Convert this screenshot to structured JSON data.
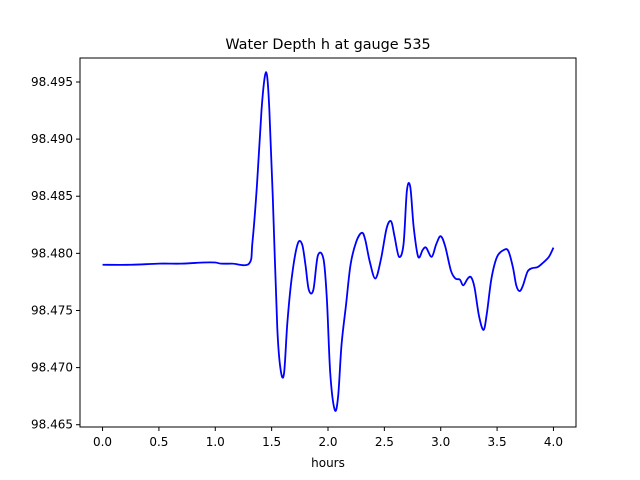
{
  "chart_data": {
    "type": "line",
    "title": "Water Depth h at gauge 535",
    "xlabel": "hours",
    "ylabel": "",
    "xlim": [
      -0.2,
      4.2
    ],
    "ylim": [
      98.4648,
      98.4971
    ],
    "grid": false,
    "legend": "none",
    "x_ticks": [
      0.0,
      0.5,
      1.0,
      1.5,
      2.0,
      2.5,
      3.0,
      3.5,
      4.0
    ],
    "x_tick_labels": [
      "0.0",
      "0.5",
      "1.0",
      "1.5",
      "2.0",
      "2.5",
      "3.0",
      "3.5",
      "4.0"
    ],
    "y_ticks": [
      98.465,
      98.47,
      98.475,
      98.48,
      98.485,
      98.49,
      98.495
    ],
    "y_tick_labels": [
      "98.465",
      "98.470",
      "98.475",
      "98.480",
      "98.485",
      "98.490",
      "98.495"
    ],
    "series": [
      {
        "color": "#0000ff",
        "x": [
          0.0,
          0.25,
          0.5,
          0.7,
          0.9,
          1.0,
          1.05,
          1.15,
          1.3,
          1.33,
          1.37,
          1.41,
          1.44,
          1.46,
          1.48,
          1.51,
          1.55,
          1.58,
          1.61,
          1.64,
          1.68,
          1.73,
          1.77,
          1.8,
          1.83,
          1.87,
          1.91,
          1.96,
          1.99,
          2.02,
          2.06,
          2.09,
          2.12,
          2.16,
          2.2,
          2.25,
          2.3,
          2.33,
          2.37,
          2.42,
          2.47,
          2.52,
          2.56,
          2.59,
          2.63,
          2.67,
          2.7,
          2.73,
          2.76,
          2.8,
          2.84,
          2.87,
          2.92,
          2.96,
          3.0,
          3.04,
          3.09,
          3.13,
          3.17,
          3.2,
          3.24,
          3.27,
          3.3,
          3.34,
          3.38,
          3.41,
          3.45,
          3.5,
          3.56,
          3.6,
          3.64,
          3.67,
          3.7,
          3.73,
          3.77,
          3.81,
          3.86,
          3.91,
          3.96,
          4.0
        ],
        "y": [
          98.479,
          98.479,
          98.4791,
          98.4791,
          98.4792,
          98.4792,
          98.4791,
          98.4791,
          98.4791,
          98.481,
          98.486,
          98.4925,
          98.4955,
          98.4955,
          98.4925,
          98.485,
          98.4735,
          98.4698,
          98.4695,
          98.474,
          98.478,
          98.4808,
          98.4808,
          98.479,
          98.4768,
          98.4768,
          98.4798,
          98.4795,
          98.476,
          98.4695,
          98.4663,
          98.4675,
          98.472,
          98.4755,
          98.479,
          98.481,
          98.4818,
          98.4812,
          98.4793,
          98.4778,
          98.4795,
          98.4822,
          98.4828,
          98.4815,
          98.4797,
          98.4808,
          98.4855,
          98.4858,
          98.4823,
          98.4797,
          98.4803,
          98.4805,
          98.4797,
          98.4808,
          98.4815,
          98.4806,
          98.4785,
          98.4778,
          98.4777,
          98.4772,
          98.4778,
          98.4779,
          98.477,
          98.4745,
          98.4733,
          98.4748,
          98.4778,
          98.4797,
          98.4803,
          98.4802,
          98.4788,
          98.4772,
          98.4767,
          98.4772,
          98.4784,
          98.4787,
          98.4788,
          98.4792,
          98.4797,
          98.4805
        ]
      }
    ]
  }
}
